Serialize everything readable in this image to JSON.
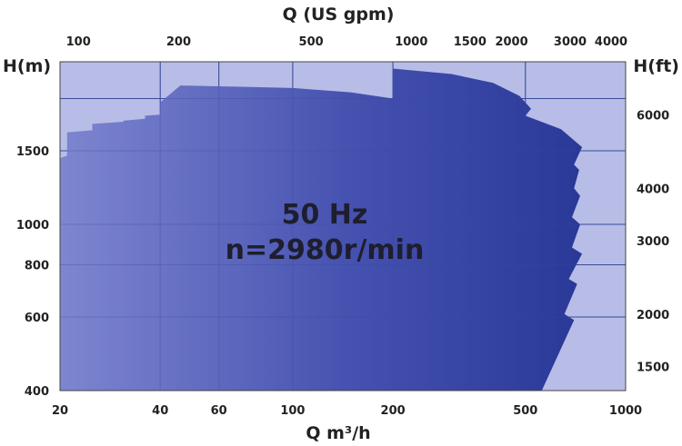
{
  "chart_data": {
    "type": "area",
    "scale": "log-log",
    "annotation_lines": [
      "50 Hz",
      "n=2980r/min"
    ],
    "x_bottom": {
      "label": "Q m³/h",
      "range": [
        20,
        1000
      ],
      "ticks": [
        20,
        40,
        60,
        100,
        200,
        500,
        1000
      ]
    },
    "x_top": {
      "label": "Q (US gpm)",
      "ticks": [
        100,
        200,
        500,
        1000,
        1500,
        2000,
        3000,
        4000
      ]
    },
    "y_left": {
      "label": "H(m)",
      "range": [
        400,
        2450
      ],
      "ticks": [
        400,
        600,
        800,
        1000,
        1500
      ]
    },
    "y_right": {
      "label": "H(ft)",
      "ticks": [
        1500,
        2000,
        3000,
        4000,
        6000
      ]
    },
    "grid": true,
    "colors": {
      "background": "#b7bde6",
      "envelope_light": "#7e86d0",
      "envelope_dark": "#2a3898",
      "grid": "#3a4a9a"
    },
    "envelope": [
      {
        "q": 20,
        "h": 1440
      },
      {
        "q": 21,
        "h": 1460
      },
      {
        "q": 21,
        "h": 1660
      },
      {
        "q": 25,
        "h": 1680
      },
      {
        "q": 25,
        "h": 1740
      },
      {
        "q": 31,
        "h": 1760
      },
      {
        "q": 31,
        "h": 1770
      },
      {
        "q": 36,
        "h": 1790
      },
      {
        "q": 36,
        "h": 1820
      },
      {
        "q": 40,
        "h": 1830
      },
      {
        "q": 40,
        "h": 1960
      },
      {
        "q": 46,
        "h": 2150
      },
      {
        "q": 60,
        "h": 2140
      },
      {
        "q": 100,
        "h": 2120
      },
      {
        "q": 150,
        "h": 2070
      },
      {
        "q": 200,
        "h": 2000
      },
      {
        "q": 200,
        "h": 2360
      },
      {
        "q": 300,
        "h": 2290
      },
      {
        "q": 400,
        "h": 2180
      },
      {
        "q": 480,
        "h": 2030
      },
      {
        "q": 520,
        "h": 1890
      },
      {
        "q": 500,
        "h": 1820
      },
      {
        "q": 640,
        "h": 1690
      },
      {
        "q": 740,
        "h": 1530
      },
      {
        "q": 700,
        "h": 1390
      },
      {
        "q": 725,
        "h": 1350
      },
      {
        "q": 700,
        "h": 1220
      },
      {
        "q": 730,
        "h": 1170
      },
      {
        "q": 690,
        "h": 1040
      },
      {
        "q": 730,
        "h": 1000
      },
      {
        "q": 690,
        "h": 880
      },
      {
        "q": 740,
        "h": 850
      },
      {
        "q": 675,
        "h": 740
      },
      {
        "q": 715,
        "h": 720
      },
      {
        "q": 655,
        "h": 610
      },
      {
        "q": 700,
        "h": 590
      },
      {
        "q": 560,
        "h": 400
      },
      {
        "q": 20,
        "h": 400
      }
    ]
  }
}
